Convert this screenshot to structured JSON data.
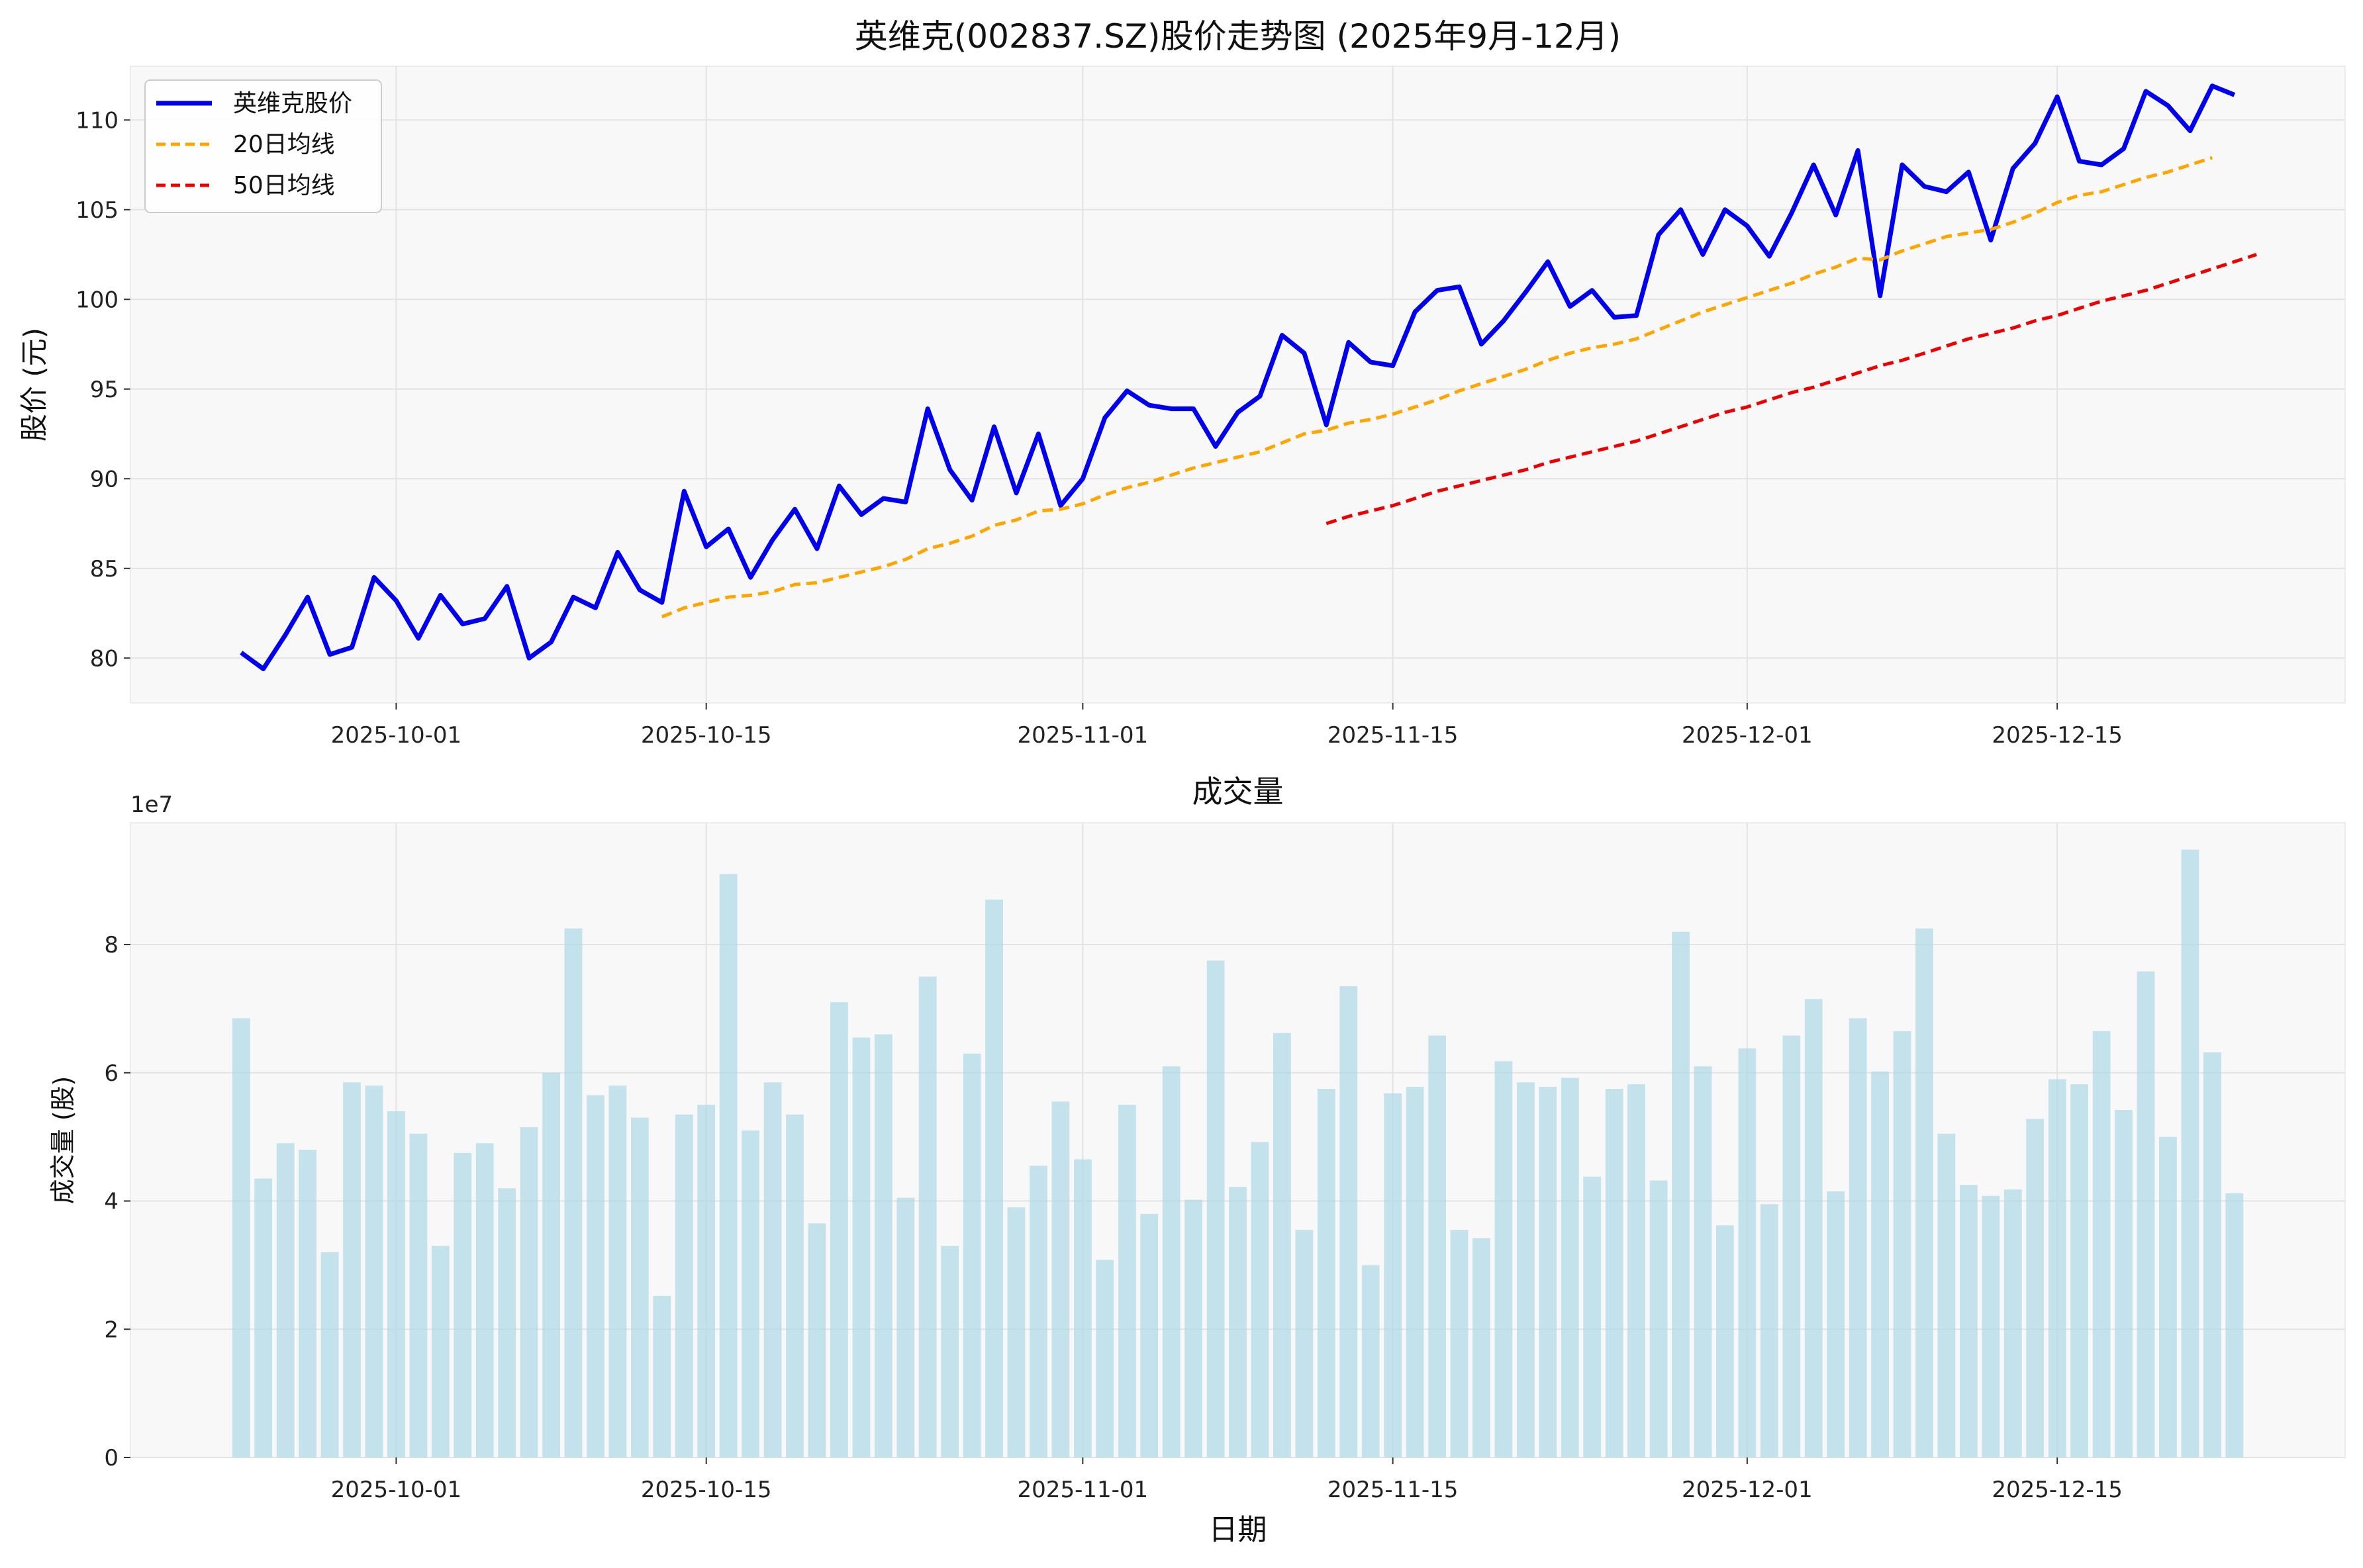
{
  "chart_data": [
    {
      "type": "line",
      "title": "英维克(002837.SZ)股价走势图 (2025年9月-12月)",
      "xlabel": "",
      "ylabel": "股价 (元)",
      "x_start": "2025-09-24",
      "x_end": "2025-12-24",
      "xlim": [
        "2025-09-19",
        "2025-12-28"
      ],
      "ylim": [
        77.5,
        113.0
      ],
      "yticks": [
        80,
        85,
        90,
        95,
        100,
        105,
        110
      ],
      "xticks": [
        "2025-10-01",
        "2025-10-15",
        "2025-11-01",
        "2025-11-15",
        "2025-12-01",
        "2025-12-15"
      ],
      "grid": true,
      "legend": "top-left",
      "series": [
        {
          "name": "英维克股价",
          "color": "#0000ee",
          "style": "solid",
          "values": [
            80.3,
            79.4,
            81.3,
            83.4,
            80.2,
            80.6,
            84.5,
            83.2,
            81.1,
            83.5,
            81.9,
            82.2,
            84.0,
            80.0,
            80.9,
            83.4,
            82.8,
            85.9,
            83.8,
            83.1,
            89.3,
            86.2,
            87.2,
            84.5,
            86.6,
            88.3,
            86.1,
            89.6,
            88.0,
            88.9,
            88.7,
            93.9,
            90.5,
            88.8,
            92.9,
            89.2,
            92.5,
            88.5,
            90.0,
            93.4,
            94.9,
            94.1,
            93.9,
            93.9,
            91.8,
            93.7,
            94.6,
            98.0,
            97.0,
            93.0,
            97.6,
            96.5,
            96.3,
            99.3,
            100.5,
            100.7,
            97.5,
            98.8,
            100.4,
            102.1,
            99.6,
            100.5,
            99.0,
            99.1,
            103.6,
            105.0,
            102.5,
            105.0,
            104.1,
            102.4,
            104.8,
            107.5,
            104.7,
            108.3,
            100.2,
            107.5,
            106.3,
            106.0,
            107.1,
            103.3,
            107.3,
            108.7,
            111.3,
            107.7,
            107.5,
            108.4,
            111.6,
            110.8,
            109.4,
            111.9,
            111.4
          ]
        },
        {
          "name": "20日均线",
          "color": "#ffa500",
          "style": "dashed",
          "start_index": 19,
          "values": [
            82.3,
            82.8,
            83.1,
            83.4,
            83.5,
            83.7,
            84.1,
            84.2,
            84.5,
            84.8,
            85.1,
            85.5,
            86.1,
            86.4,
            86.8,
            87.4,
            87.7,
            88.2,
            88.3,
            88.6,
            89.1,
            89.5,
            89.8,
            90.2,
            90.6,
            90.9,
            91.2,
            91.5,
            92.0,
            92.5,
            92.7,
            93.1,
            93.3,
            93.6,
            94.0,
            94.4,
            94.9,
            95.3,
            95.7,
            96.1,
            96.6,
            97.0,
            97.3,
            97.5,
            97.8,
            98.3,
            98.8,
            99.3,
            99.7,
            100.1,
            100.5,
            100.9,
            101.4,
            101.8,
            102.3,
            102.2,
            102.7,
            103.1,
            103.5,
            103.7,
            103.9,
            104.3,
            104.8,
            105.4,
            105.8,
            106.0,
            106.4,
            106.8,
            107.1,
            107.5,
            107.9
          ]
        },
        {
          "name": "50日均线",
          "color": "#ee0000",
          "style": "dashed",
          "start_index": 49,
          "values": [
            87.5,
            87.9,
            88.2,
            88.5,
            88.9,
            89.3,
            89.6,
            89.9,
            90.2,
            90.5,
            90.9,
            91.2,
            91.5,
            91.8,
            92.1,
            92.5,
            92.9,
            93.3,
            93.7,
            94.0,
            94.4,
            94.8,
            95.1,
            95.5,
            95.9,
            96.3,
            96.6,
            97.0,
            97.4,
            97.8,
            98.1,
            98.4,
            98.8,
            99.1,
            99.5,
            99.9,
            100.2,
            100.5,
            100.9,
            101.3,
            101.7,
            102.1,
            102.5
          ]
        }
      ]
    },
    {
      "type": "bar",
      "title": "成交量",
      "xlabel": "日期",
      "ylabel": "成交量 (股)",
      "offset_text": "1e7",
      "x_start": "2025-09-24",
      "xlim": [
        "2025-09-19",
        "2025-12-28"
      ],
      "ylim": [
        0,
        9.9
      ],
      "yticks": [
        0,
        2,
        4,
        6,
        8
      ],
      "xticks": [
        "2025-10-01",
        "2025-10-15",
        "2025-11-01",
        "2025-11-15",
        "2025-12-01",
        "2025-12-15"
      ],
      "grid": true,
      "color": "#add8e6",
      "values": [
        6.85,
        4.35,
        4.9,
        4.8,
        3.2,
        5.85,
        5.8,
        5.4,
        5.05,
        3.3,
        4.75,
        4.9,
        4.2,
        5.15,
        6.0,
        8.25,
        5.65,
        5.8,
        5.3,
        2.52,
        5.35,
        5.5,
        9.1,
        5.1,
        5.85,
        5.35,
        3.65,
        7.1,
        6.55,
        6.6,
        4.05,
        7.5,
        3.3,
        6.3,
        8.7,
        3.9,
        4.55,
        5.55,
        4.65,
        3.08,
        5.5,
        3.8,
        6.1,
        4.02,
        7.75,
        4.22,
        4.92,
        6.62,
        3.55,
        5.75,
        7.35,
        3.0,
        5.68,
        5.78,
        6.58,
        3.55,
        3.42,
        6.18,
        5.85,
        5.78,
        5.92,
        4.38,
        5.75,
        5.82,
        4.32,
        8.2,
        6.1,
        3.62,
        6.38,
        3.95,
        6.58,
        7.15,
        4.15,
        6.85,
        6.02,
        6.65,
        8.25,
        5.05,
        4.25,
        4.08,
        4.18,
        5.28,
        5.9,
        5.82,
        6.65,
        5.42,
        7.58,
        5.0,
        9.48,
        6.32,
        4.12
      ]
    }
  ]
}
